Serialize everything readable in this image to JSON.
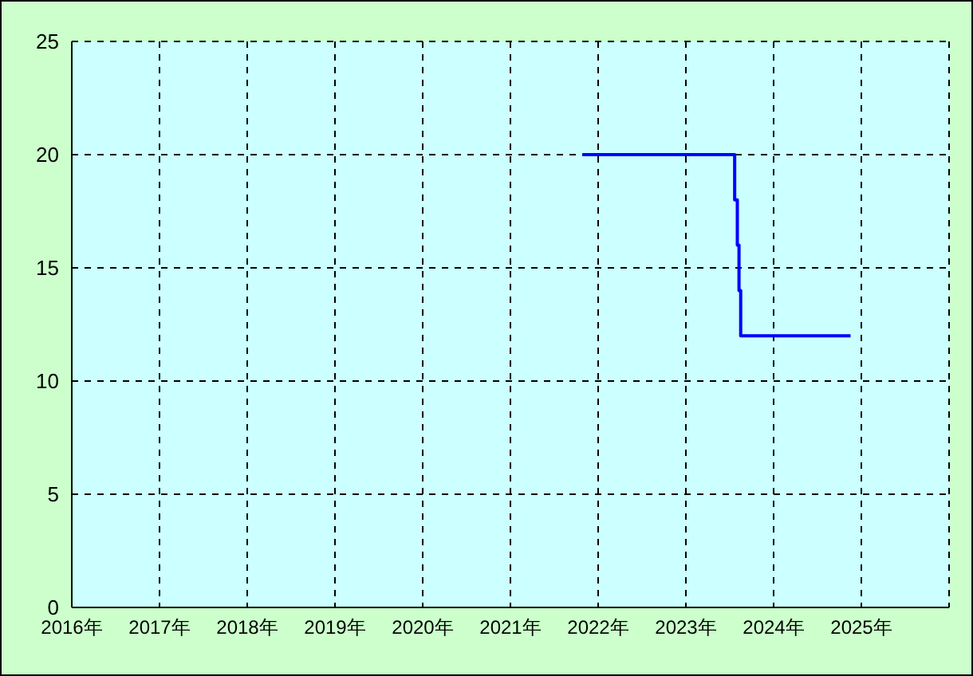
{
  "chart_data": {
    "type": "step",
    "x": [
      "2021-10-27",
      "2023-07-23",
      "2023-08-03",
      "2023-08-10",
      "2023-08-17",
      "2024-11-17"
    ],
    "series": [
      {
        "color": "#0000ff",
        "values": [
          20,
          18,
          16,
          14,
          12,
          12
        ]
      }
    ],
    "xlim": [
      "2016",
      "2026"
    ],
    "xticks": [
      {
        "value": "2016",
        "label": "2016年"
      },
      {
        "value": "2017",
        "label": "2017年"
      },
      {
        "value": "2018",
        "label": "2018年"
      },
      {
        "value": "2019",
        "label": "2019年"
      },
      {
        "value": "2020",
        "label": "2020年"
      },
      {
        "value": "2021",
        "label": "2021年"
      },
      {
        "value": "2022",
        "label": "2022年"
      },
      {
        "value": "2023",
        "label": "2023年"
      },
      {
        "value": "2024",
        "label": "2024年"
      },
      {
        "value": "2025",
        "label": "2025年"
      },
      {
        "value": "2026",
        "label": null
      }
    ],
    "ylim": [
      0,
      25
    ],
    "yticks": [
      0,
      5,
      10,
      15,
      20,
      25
    ],
    "grid": true,
    "marker": "none",
    "line_style": "solid"
  }
}
